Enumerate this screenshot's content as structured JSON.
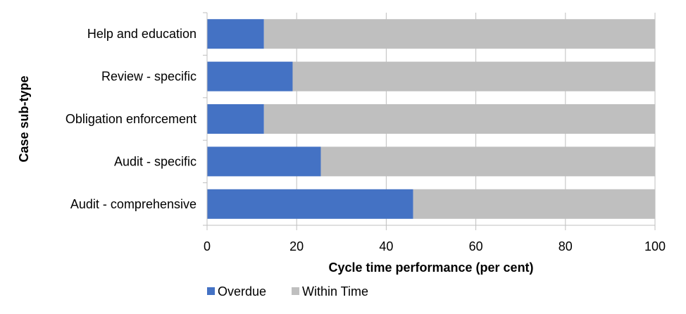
{
  "chart_data": {
    "type": "bar",
    "orientation": "horizontal",
    "stacked": true,
    "categories": [
      "Help and education",
      "Review - specific",
      "Obligation enforcement",
      "Audit - specific",
      "Audit - comprehensive"
    ],
    "series": [
      {
        "name": "Overdue",
        "values": [
          12.7,
          19.1,
          12.7,
          25.4,
          46.0
        ],
        "color": "#4472C4"
      },
      {
        "name": "Within Time",
        "values": [
          87.3,
          80.9,
          87.3,
          74.6,
          54.0
        ],
        "color": "#BFBFBF"
      }
    ],
    "xlabel": "Cycle time performance (per cent)",
    "ylabel": "Case sub-type",
    "xlim": [
      0,
      100
    ],
    "xticks": [
      0,
      20,
      40,
      60,
      80,
      100
    ],
    "grid": "vertical",
    "legend": "bottom"
  }
}
